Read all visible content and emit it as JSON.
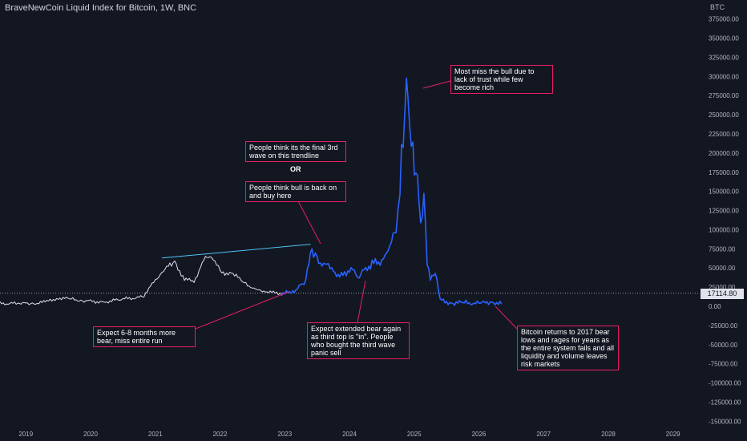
{
  "header": {
    "title": "BraveNewCoin Liquid Index for Bitcoin, 1W, BNC",
    "currency": "BTC"
  },
  "colors": {
    "background": "#131722",
    "price_line": "#2962ff",
    "history_line": "#e0e0f0",
    "trendline": "#4fc3f7",
    "annotation": "#e91e63",
    "axis_text": "#b2b5be"
  },
  "chart_data": {
    "type": "line",
    "title": "BraveNewCoin Liquid Index for Bitcoin, 1W, BNC",
    "xlabel": "",
    "ylabel": "",
    "x_ticks": [
      "2019",
      "2020",
      "2021",
      "2022",
      "2023",
      "2024",
      "2025",
      "2026",
      "2027",
      "2028",
      "2029"
    ],
    "y_ticks": [
      "375000.00",
      "350000.00",
      "325000.00",
      "300000.00",
      "275000.00",
      "250000.00",
      "225000.00",
      "200000.00",
      "175000.00",
      "150000.00",
      "125000.00",
      "100000.00",
      "75000.00",
      "50000.00",
      "25000.00",
      "0.00",
      "-25000.00",
      "-50000.00",
      "-75000.00",
      "-100000.00",
      "-125000.00",
      "-150000.00"
    ],
    "ylim": [
      -160000,
      385000
    ],
    "xlim": [
      2018.6,
      2029.4
    ],
    "current_price": 17114.8,
    "current_price_label": "17114.80",
    "grid": false,
    "series": [
      {
        "role": "history",
        "points": [
          [
            2018.6,
            3800
          ],
          [
            2018.9,
            3600
          ],
          [
            2019.1,
            3700
          ],
          [
            2019.3,
            5500
          ],
          [
            2019.5,
            11000
          ],
          [
            2019.7,
            9500
          ],
          [
            2019.9,
            7300
          ],
          [
            2020.2,
            5500
          ],
          [
            2020.5,
            9500
          ],
          [
            2020.8,
            12000
          ],
          [
            2020.95,
            28000
          ],
          [
            2021.1,
            45000
          ],
          [
            2021.3,
            58000
          ],
          [
            2021.45,
            35000
          ],
          [
            2021.6,
            33000
          ],
          [
            2021.75,
            60000
          ],
          [
            2021.87,
            67000
          ],
          [
            2022.0,
            45000
          ],
          [
            2022.2,
            42000
          ],
          [
            2022.4,
            30000
          ],
          [
            2022.55,
            21000
          ],
          [
            2022.7,
            20000
          ],
          [
            2022.85,
            17000
          ],
          [
            2022.95,
            16500
          ]
        ]
      },
      {
        "role": "projection",
        "points": [
          [
            2022.95,
            16500
          ],
          [
            2023.1,
            18000
          ],
          [
            2023.2,
            24000
          ],
          [
            2023.3,
            30000
          ],
          [
            2023.35,
            45000
          ],
          [
            2023.42,
            75000
          ],
          [
            2023.5,
            60000
          ],
          [
            2023.6,
            55000
          ],
          [
            2023.75,
            48000
          ],
          [
            2023.85,
            38000
          ],
          [
            2023.95,
            45000
          ],
          [
            2024.05,
            48000
          ],
          [
            2024.15,
            38000
          ],
          [
            2024.25,
            50000
          ],
          [
            2024.35,
            55000
          ],
          [
            2024.45,
            58000
          ],
          [
            2024.55,
            62000
          ],
          [
            2024.65,
            88000
          ],
          [
            2024.72,
            100000
          ],
          [
            2024.78,
            150000
          ],
          [
            2024.83,
            230000
          ],
          [
            2024.88,
            285000
          ],
          [
            2024.93,
            240000
          ],
          [
            2024.98,
            200000
          ],
          [
            2025.05,
            160000
          ],
          [
            2025.1,
            110000
          ],
          [
            2025.15,
            140000
          ],
          [
            2025.2,
            60000
          ],
          [
            2025.25,
            35000
          ],
          [
            2025.3,
            42000
          ],
          [
            2025.35,
            38000
          ],
          [
            2025.4,
            8000
          ],
          [
            2025.6,
            4000
          ],
          [
            2025.8,
            5000
          ],
          [
            2026.0,
            3500
          ],
          [
            2026.2,
            6000
          ],
          [
            2026.35,
            3000
          ]
        ]
      },
      {
        "role": "trendline",
        "points": [
          [
            2021.1,
            63000
          ],
          [
            2023.4,
            81000
          ]
        ]
      }
    ]
  },
  "annotations": {
    "top": "Most miss the bull due to lack of trust while few become rich",
    "final_wave": "People think its the final 3rd wave on this trendline",
    "or": "OR",
    "bull_back": "People think bull is back on and buy here",
    "bear_6_8": "Expect 6-8 months more bear, miss entire run",
    "extended_bear": "Expect extended bear again as third top is \"in\". People who bought the third wave panic sell",
    "returns_2017": "Bitcoin returns to 2017 bear lows and rages for years as the entire system fails and all liquidity and volume leaves risk markets"
  }
}
